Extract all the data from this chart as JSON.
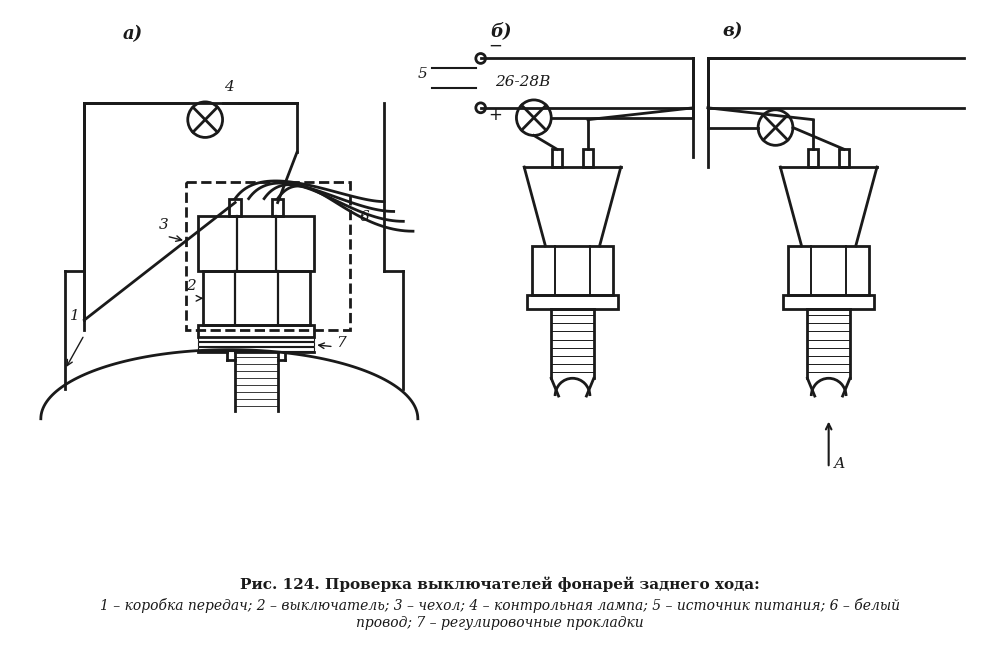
{
  "bg_color": "#ffffff",
  "line_color": "#1a1a1a",
  "label_a": "а)",
  "label_b": "б)",
  "label_v": "в)",
  "label_voltage": "26-28В",
  "label_A": "А",
  "title": "Рис. 124. Проверка выключателей фонарей заднего хода:",
  "caption2": "1 – коробка передач; 2 – выключатель; 3 – чехол; 4 – контрольная лампа; 5 – источник питания; 6 – белый",
  "caption3": "провод; 7 – регулировочные прокладки"
}
